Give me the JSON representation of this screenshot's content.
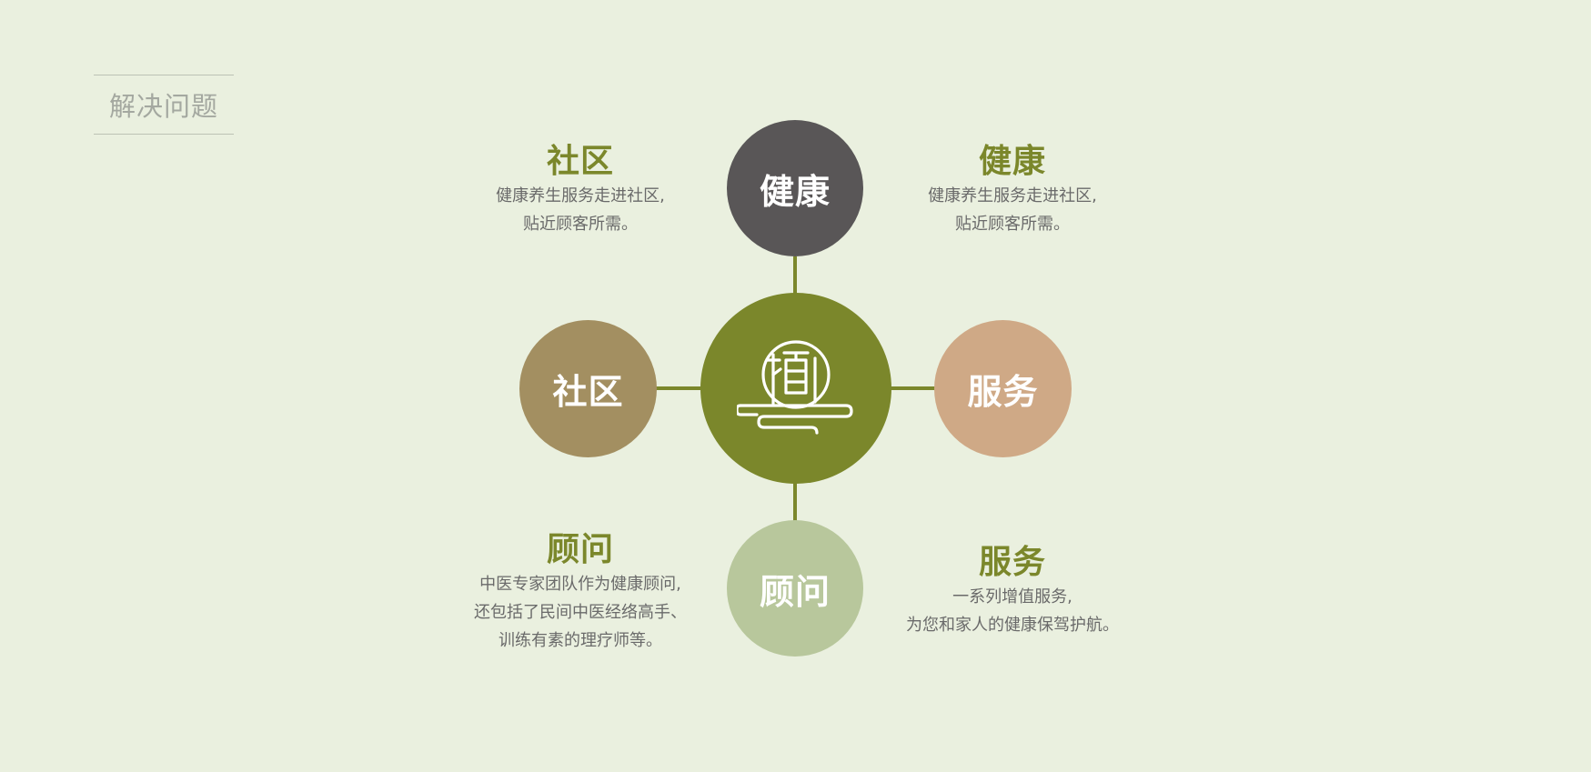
{
  "heading": "解决问题",
  "center": {
    "icon": "seal-logo-icon"
  },
  "nodes": {
    "health": "健康",
    "community": "社区",
    "service": "服务",
    "advisor": "顾问"
  },
  "info": {
    "community": {
      "title": "社区",
      "lines": [
        "健康养生服务走进社区,",
        "贴近顾客所需。"
      ]
    },
    "health": {
      "title": "健康",
      "lines": [
        "健康养生服务走进社区,",
        "贴近顾客所需。"
      ]
    },
    "advisor": {
      "title": "顾问",
      "lines": [
        "中医专家团队作为健康顾问,",
        "还包括了民间中医经络高手、",
        "训练有素的理疗师等。"
      ]
    },
    "service": {
      "title": "服务",
      "lines": [
        "一系列增值服务,",
        "为您和家人的健康保驾护航。"
      ]
    }
  },
  "colors": {
    "background": "#eaf0df",
    "accent": "#7b872b",
    "health": "#595657",
    "community": "#a38f61",
    "service": "#cfa986",
    "advisor": "#b8c79c"
  }
}
